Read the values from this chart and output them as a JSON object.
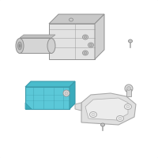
{
  "background_color": "#ffffff",
  "border_color": "#c8c8c8",
  "icm_color": "#5bc8d8",
  "icm_edge": "#3a9aaa",
  "icm_dark": "#3aabbc",
  "icm_top": "#4abccc",
  "abs_face": "#e2e2e2",
  "abs_side": "#d0d0d0",
  "abs_top": "#c8c8c8",
  "abs_edge": "#909090",
  "bracket_face": "#e0e0e0",
  "bracket_edge": "#aaaaaa",
  "hw_color": "#d0d0d0",
  "hw_edge": "#909090"
}
